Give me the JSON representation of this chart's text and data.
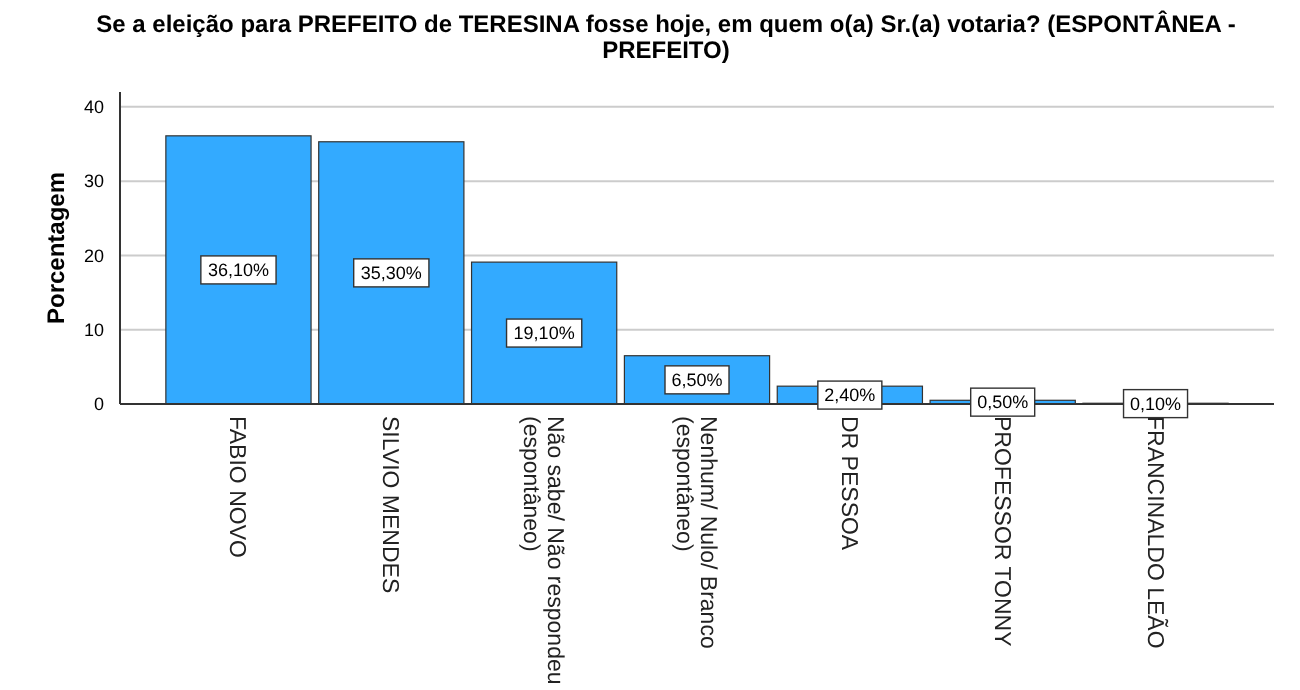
{
  "chart_data": {
    "type": "bar",
    "title": "Se a eleição para PREFEITO de TERESINA fosse hoje, em quem o(a) Sr.(a) votaria? (ESPONTÂNEA - PREFEITO)",
    "ylabel": "Porcentagem",
    "categories": [
      "FABIO NOVO",
      "SILVIO MENDES",
      "Não sabe/ Não respondeu (espontâneo)",
      "Nenhum/ Nulo/ Branco (espontâneo)",
      "DR PESSOA",
      "PROFESSOR TONNY",
      "FRANCINALDO LEÃO"
    ],
    "values": [
      36.1,
      35.3,
      19.1,
      6.5,
      2.4,
      0.5,
      0.1
    ],
    "value_labels": [
      "36,10%",
      "35,30%",
      "19,10%",
      "6,50%",
      "2,40%",
      "0,50%",
      "0,10%"
    ],
    "color": "#33aaff",
    "ylim": [
      0,
      42
    ],
    "yticks": [
      0,
      10,
      20,
      30,
      40
    ],
    "grid": "y"
  }
}
